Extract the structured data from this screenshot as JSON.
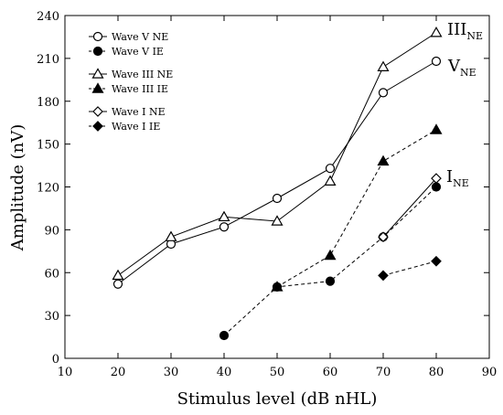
{
  "chart_data": {
    "type": "line",
    "xlabel": "Stimulus level (dB nHL)",
    "ylabel": "Amplitude (nV)",
    "xlim": [
      10,
      90
    ],
    "ylim": [
      0,
      240
    ],
    "xticks": [
      10,
      20,
      30,
      40,
      50,
      60,
      70,
      80,
      90
    ],
    "yticks": [
      0,
      30,
      60,
      90,
      120,
      150,
      180,
      210,
      240
    ],
    "grid": false,
    "legend_position": "top-left",
    "series": [
      {
        "name": "Wave V NE",
        "marker": "circle-open",
        "line": "solid",
        "x": [
          20,
          30,
          40,
          50,
          60,
          70,
          80
        ],
        "y": [
          52,
          80,
          92,
          112,
          133,
          186,
          208
        ]
      },
      {
        "name": "Wave V IE",
        "marker": "circle-filled",
        "line": "dashed",
        "x": [
          40,
          50,
          60,
          70,
          80
        ],
        "y": [
          16,
          50,
          54,
          85,
          120
        ]
      },
      {
        "name": "Wave III NE",
        "marker": "triangle-open",
        "line": "solid",
        "x": [
          20,
          30,
          40,
          50,
          60,
          70,
          80
        ],
        "y": [
          58,
          85,
          99,
          96,
          124,
          204,
          228
        ]
      },
      {
        "name": "Wave III IE",
        "marker": "triangle-filled",
        "line": "dashed",
        "x": [
          50,
          60,
          70,
          80
        ],
        "y": [
          50,
          72,
          138,
          160
        ]
      },
      {
        "name": "Wave I NE",
        "marker": "diamond-open",
        "line": "solid",
        "x": [
          70,
          80
        ],
        "y": [
          85,
          126
        ]
      },
      {
        "name": "Wave I IE",
        "marker": "diamond-filled",
        "line": "dashed",
        "x": [
          70,
          80
        ],
        "y": [
          58,
          68
        ]
      }
    ],
    "annotations": [
      {
        "main": "III",
        "sub": "NE",
        "at_series": "Wave III NE"
      },
      {
        "main": "V",
        "sub": "NE",
        "at_series": "Wave V NE"
      },
      {
        "main": "I",
        "sub": "NE",
        "at_series": "Wave I NE"
      }
    ]
  }
}
